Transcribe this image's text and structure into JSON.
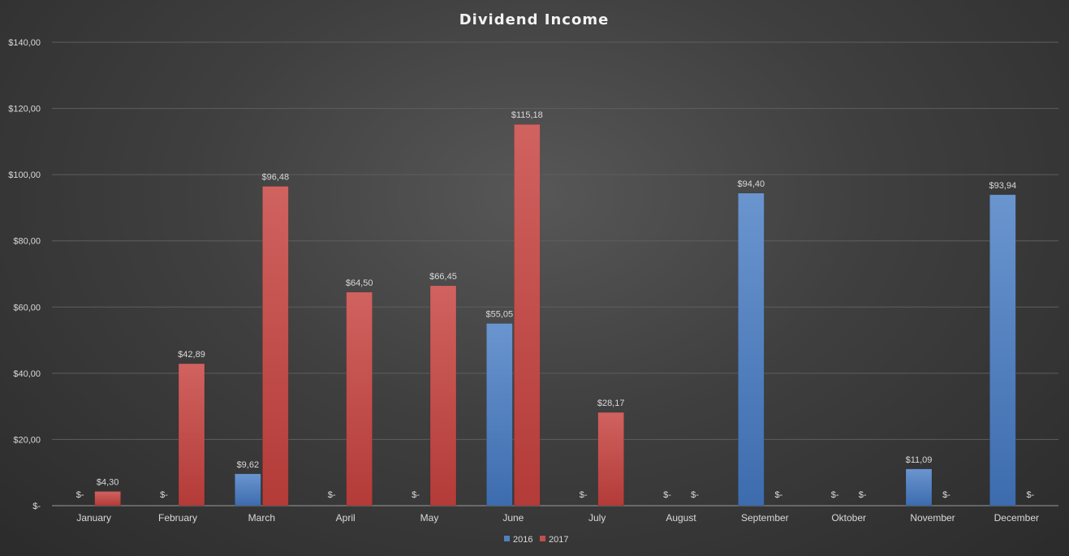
{
  "chart_data": {
    "type": "bar",
    "title": "Dividend Income",
    "xlabel": "",
    "ylabel": "",
    "ylim": [
      0,
      140
    ],
    "yticks": [
      {
        "value": 0,
        "label": "$-"
      },
      {
        "value": 20,
        "label": "$20,00"
      },
      {
        "value": 40,
        "label": "$40,00"
      },
      {
        "value": 60,
        "label": "$60,00"
      },
      {
        "value": 80,
        "label": "$80,00"
      },
      {
        "value": 100,
        "label": "$100,00"
      },
      {
        "value": 120,
        "label": "$120,00"
      },
      {
        "value": 140,
        "label": "$140,00"
      }
    ],
    "grid": true,
    "legend_position": "bottom",
    "categories": [
      "January",
      "February",
      "March",
      "April",
      "May",
      "June",
      "July",
      "August",
      "September",
      "Oktober",
      "November",
      "December"
    ],
    "series": [
      {
        "name": "2016",
        "color": "#4f81bd",
        "values": [
          0,
          0,
          9.62,
          0,
          0,
          55.05,
          0,
          0,
          94.4,
          0,
          11.09,
          93.94
        ],
        "labels": [
          "$-",
          "$-",
          "$9,62",
          "$-",
          "$-",
          "$55,05",
          "$-",
          "$-",
          "$94,40",
          "$-",
          "$11,09",
          "$93,94"
        ]
      },
      {
        "name": "2017",
        "color": "#c0504d",
        "values": [
          4.3,
          42.89,
          96.48,
          64.5,
          66.45,
          115.18,
          28.17,
          0,
          0,
          0,
          0,
          0
        ],
        "labels": [
          "$4,30",
          "$42,89",
          "$96,48",
          "$64,50",
          "$66,45",
          "$115,18",
          "$28,17",
          "$-",
          "$-",
          "$-",
          "$-",
          "$-"
        ]
      }
    ]
  }
}
